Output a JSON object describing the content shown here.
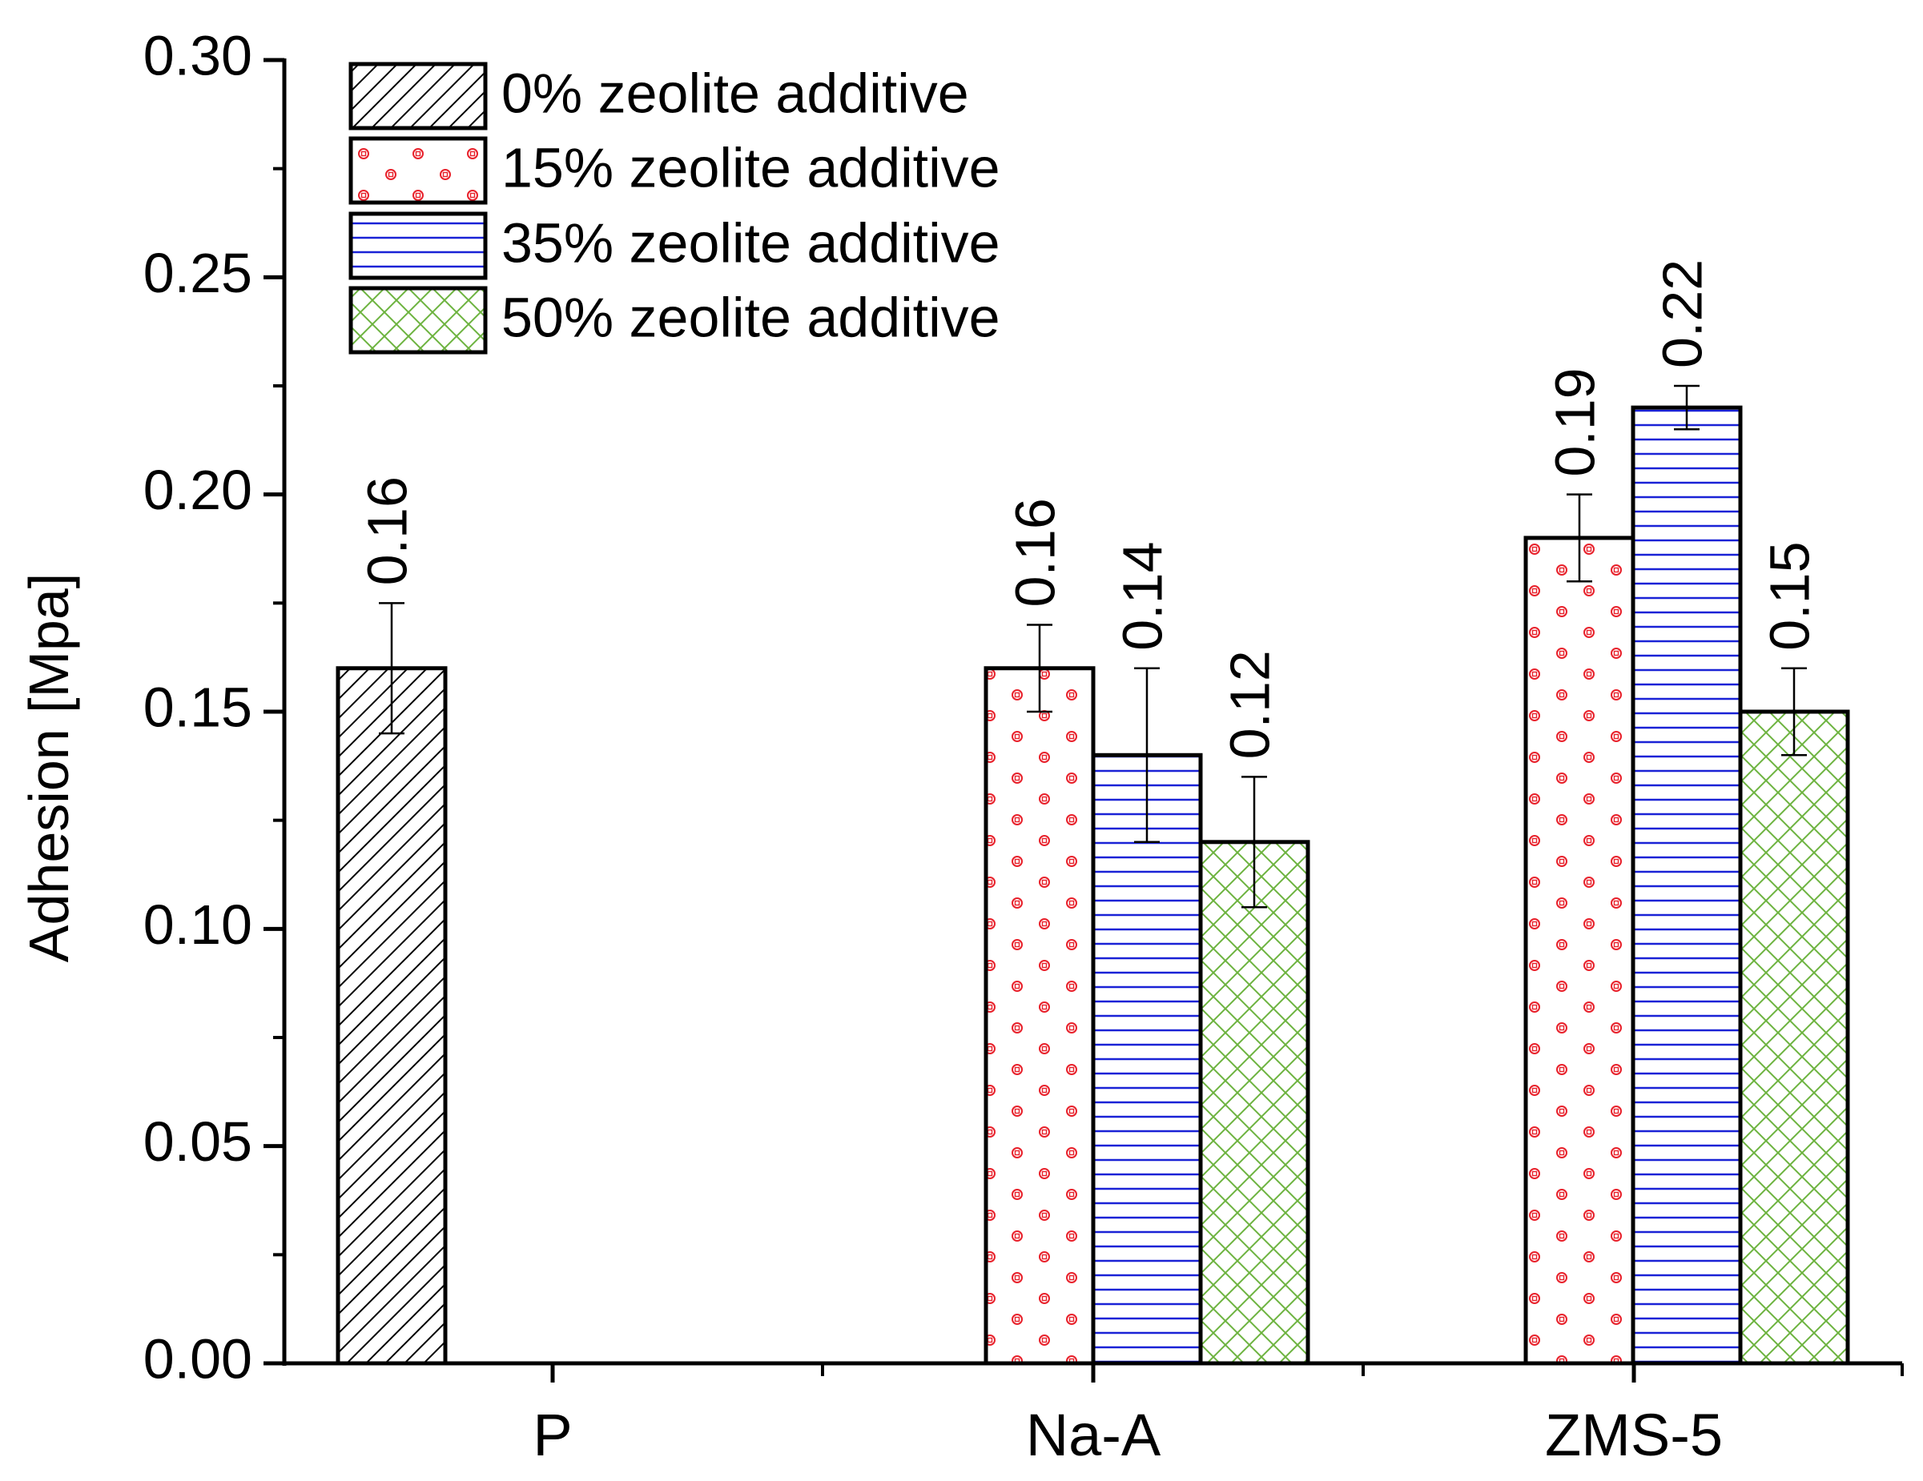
{
  "chart_data": {
    "type": "bar",
    "title": "",
    "xlabel": "",
    "ylabel": "Adhesion [Mpa]",
    "ylim": [
      0,
      0.3
    ],
    "yticks": [
      "0.00",
      "0.05",
      "0.10",
      "0.15",
      "0.20",
      "0.25",
      "0.30"
    ],
    "categories": [
      "P",
      "Na-A",
      "ZMS-5"
    ],
    "legend_position": "top-left",
    "series": [
      {
        "name": "0% zeolite additive",
        "pattern": "diagonal-hatch",
        "color": "#000000",
        "values": [
          0.16,
          null,
          null
        ],
        "errors": [
          0.015,
          null,
          null
        ],
        "labels": [
          "0.16",
          "",
          ""
        ]
      },
      {
        "name": "15% zeolite additive",
        "pattern": "red-dots",
        "color": "#e8212b",
        "values": [
          null,
          0.16,
          0.19
        ],
        "errors": [
          null,
          0.01,
          0.01
        ],
        "labels": [
          "",
          "0.16",
          "0.19"
        ]
      },
      {
        "name": "35% zeolite additive",
        "pattern": "blue-horizontal-lines",
        "color": "#1a22d6",
        "values": [
          null,
          0.14,
          0.22
        ],
        "errors": [
          null,
          0.02,
          0.005
        ],
        "labels": [
          "",
          "0.14",
          "0.22"
        ]
      },
      {
        "name": "50% zeolite additive",
        "pattern": "green-crosshatch",
        "color": "#6db33f",
        "values": [
          null,
          0.12,
          0.15
        ],
        "errors": [
          null,
          0.015,
          0.01
        ],
        "labels": [
          "",
          "0.12",
          "0.15"
        ]
      }
    ]
  }
}
